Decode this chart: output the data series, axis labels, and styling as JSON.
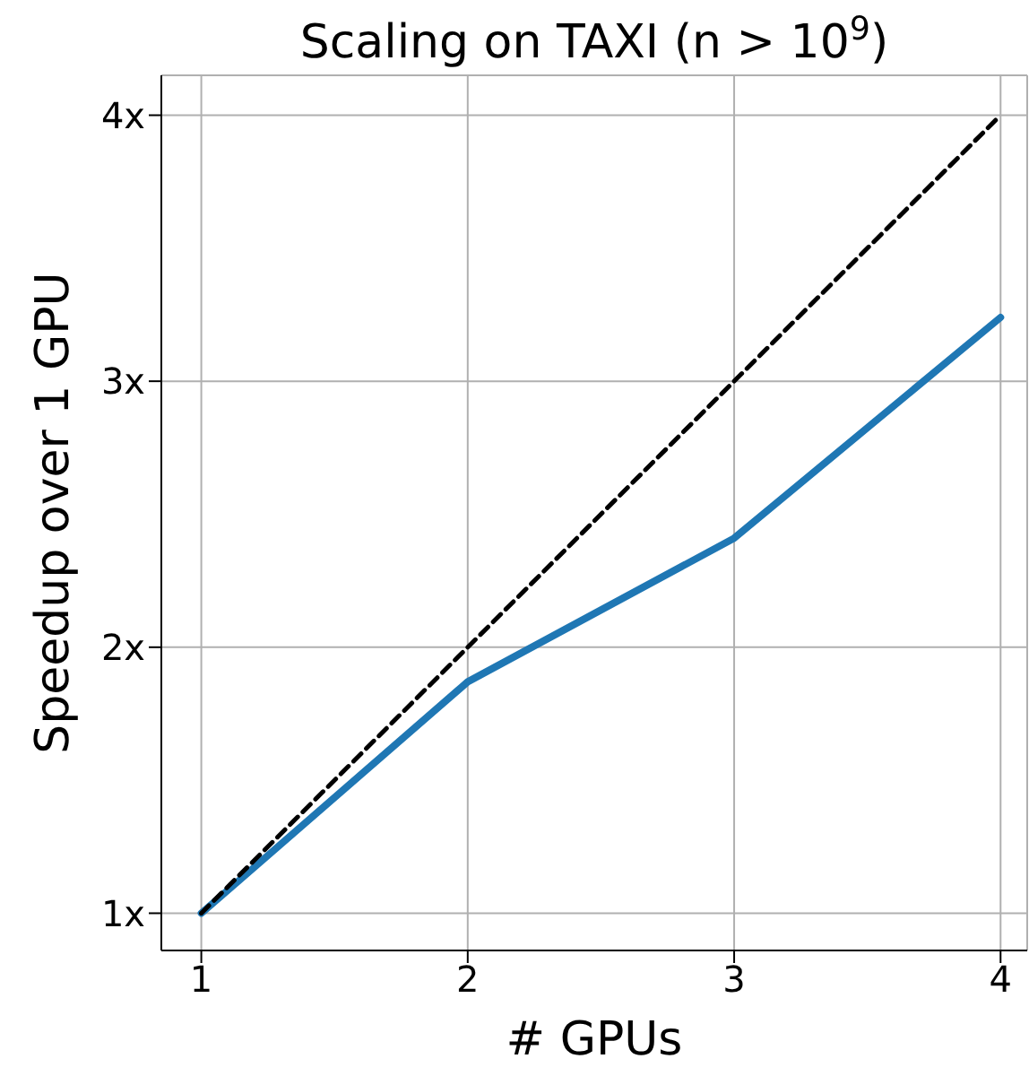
{
  "chart_data": {
    "type": "line",
    "title": "Scaling on TAXI (n > 10$^{9}$)",
    "xlabel": "# GPUs",
    "ylabel": "Speedup over 1 GPU",
    "x": [
      1,
      2,
      3,
      4
    ],
    "series": [
      {
        "color": "#1f77b4",
        "values": [
          1,
          1.87,
          2.41,
          3.24
        ],
        "line_style": "solid"
      },
      {
        "color": "#000000",
        "values": [
          1,
          2,
          3,
          4
        ],
        "line_style": "dashed"
      }
    ],
    "xlim": [
      0.85,
      4.1
    ],
    "ylim": [
      0.86,
      4.15
    ],
    "xticks": [
      1,
      2,
      3,
      4
    ],
    "yticks": [
      {
        "value": 1,
        "label": "1x"
      },
      {
        "value": 2,
        "label": "2x"
      },
      {
        "value": 3,
        "label": "3x"
      },
      {
        "value": 4,
        "label": "4x"
      }
    ],
    "grid": true,
    "legend": false,
    "marker": "none"
  }
}
